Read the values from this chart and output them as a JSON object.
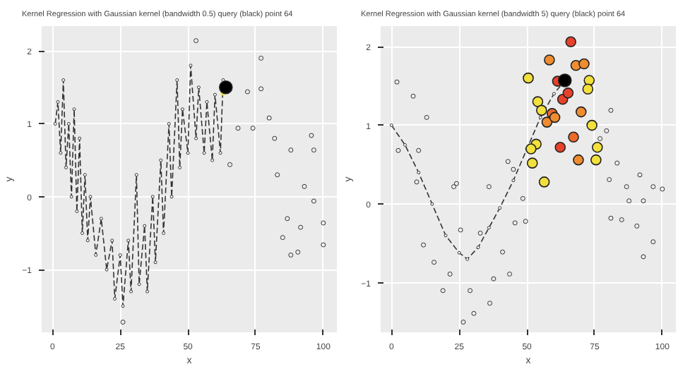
{
  "chart_data": [
    {
      "type": "scatter",
      "title": "Kernel Regression with Gaussian kernel (bandwidth 0.5) query (black) point 64",
      "xlabel": "x",
      "ylabel": "y",
      "xlim": [
        -4,
        105
      ],
      "ylim": [
        -1.86,
        2.34
      ],
      "xticks": [
        0,
        25,
        50,
        75,
        100
      ],
      "yticks": [
        -1,
        0,
        1,
        2
      ],
      "grid": true,
      "marker": "circle",
      "series": [
        {
          "type": "line",
          "line_style": "dashed",
          "color": "#333333",
          "x": [
            1,
            2,
            3,
            4,
            5,
            6,
            7,
            8,
            9,
            10,
            11,
            12,
            13,
            14,
            16,
            18,
            20,
            22,
            23,
            25,
            26,
            28,
            29,
            31,
            32,
            34,
            35,
            37,
            38,
            40,
            41,
            43,
            44,
            46,
            47,
            48,
            50,
            51,
            53,
            54,
            56,
            57,
            59,
            60,
            62,
            63,
            64
          ],
          "values": [
            1.0,
            1.3,
            0.6,
            1.6,
            0.4,
            1.0,
            0.0,
            1.2,
            -0.2,
            0.8,
            -0.5,
            0.3,
            -0.6,
            0.0,
            -0.8,
            -0.3,
            -1.0,
            -0.6,
            -1.4,
            -0.8,
            -1.5,
            -0.6,
            -1.3,
            0.3,
            -1.2,
            -0.4,
            -1.3,
            0.0,
            -0.9,
            0.5,
            -0.5,
            1.0,
            0.0,
            1.6,
            0.4,
            1.2,
            0.6,
            1.8,
            0.8,
            1.5,
            0.6,
            1.3,
            0.5,
            1.4,
            0.6,
            1.6,
            1.5
          ]
        },
        {
          "color": "#333333",
          "x": [
            72,
            77,
            77,
            80,
            68.5,
            74,
            82,
            88,
            95.6,
            96.5,
            65.5,
            83,
            93,
            96.5,
            100,
            86.7,
            85,
            91.6,
            88,
            90.6,
            100,
            53,
            26
          ],
          "values": [
            1.44,
            1.9,
            1.48,
            1.08,
            0.94,
            0.94,
            0.8,
            0.64,
            0.84,
            0.64,
            0.44,
            0.3,
            0.14,
            -0.06,
            -0.36,
            -0.3,
            -0.56,
            -0.42,
            -0.8,
            -0.76,
            -0.66,
            2.14,
            -1.72
          ]
        },
        {
          "color": "#f2e03c",
          "x": [
            63
          ],
          "values": [
            1.42
          ]
        },
        {
          "color": "#000000",
          "x": [
            64
          ],
          "values": [
            1.5
          ]
        }
      ]
    },
    {
      "type": "scatter",
      "title": "Kernel Regression with Gaussian kernel (bandwidth 5) query (black) point 64",
      "xlabel": "x",
      "ylabel": "y",
      "xlim": [
        -4,
        105
      ],
      "ylim": [
        -1.63,
        2.26
      ],
      "xticks": [
        0,
        25,
        50,
        75,
        100
      ],
      "yticks": [
        -1,
        0,
        1,
        2
      ],
      "grid": true,
      "marker": "circle",
      "series": [
        {
          "type": "line",
          "line_style": "dashed",
          "color": "#333333",
          "x": [
            0,
            5,
            10,
            15,
            20,
            25,
            28,
            32,
            36,
            40,
            45,
            50,
            55,
            60,
            64
          ],
          "values": [
            1.0,
            0.75,
            0.4,
            0.0,
            -0.4,
            -0.62,
            -0.7,
            -0.55,
            -0.3,
            -0.05,
            0.3,
            0.7,
            1.1,
            1.4,
            1.57
          ]
        },
        {
          "color": "#333333",
          "x": [
            2,
            8,
            13,
            2.5,
            10,
            24,
            43,
            45,
            81,
            79.4,
            83.3,
            80.4,
            91.7,
            96.6,
            9.3,
            23,
            36,
            48.5,
            45.6,
            49.5,
            11.8,
            15.7,
            21.6,
            19,
            29,
            25.5,
            32.8,
            41,
            37.7,
            43.6,
            30.4,
            26.5,
            36.3,
            81,
            85,
            87.7,
            93,
            90.6,
            96.6,
            93,
            86.8,
            100,
            77
          ],
          "values": [
            1.55,
            1.37,
            1.1,
            0.68,
            0.68,
            0.26,
            0.54,
            0.44,
            1.19,
            0.93,
            0.52,
            0.31,
            0.37,
            0.22,
            0.28,
            0.22,
            0.22,
            0.07,
            -0.24,
            -0.22,
            -0.52,
            -0.74,
            -0.89,
            -1.1,
            -1.1,
            -0.33,
            -0.37,
            -0.61,
            -0.95,
            -0.89,
            -1.39,
            -1.5,
            -1.26,
            -0.18,
            -0.2,
            0.04,
            0.04,
            -0.28,
            -0.48,
            -0.67,
            0.22,
            0.19,
            0.83
          ]
        },
        {
          "x": [
            50.5,
            54,
            55.4,
            57.4,
            59.3,
            60.3,
            58.3,
            61.3,
            63.2,
            65.2,
            66.2,
            68.1,
            71.1,
            73,
            72.5,
            70,
            74,
            67.2,
            62.3,
            69,
            75.5,
            76,
            53.4,
            51.5,
            52,
            56.4
          ],
          "values": [
            1.6,
            1.3,
            1.19,
            1.04,
            1.15,
            1.1,
            1.83,
            1.56,
            1.33,
            1.41,
            2.06,
            1.76,
            1.78,
            1.57,
            1.46,
            1.17,
            1.0,
            0.85,
            0.72,
            0.56,
            0.56,
            0.72,
            0.76,
            0.7,
            0.52,
            0.28
          ],
          "colors": [
            "#f2e03c",
            "#f2e03c",
            "#f2e03c",
            "#f08c30",
            "#ec6a2c",
            "#f08c30",
            "#f08c30",
            "#e8412a",
            "#e8412a",
            "#e8412a",
            "#e8412a",
            "#f08c30",
            "#f08c30",
            "#f2e03c",
            "#f2e03c",
            "#f08c30",
            "#f2e03c",
            "#ec6a2c",
            "#e8412a",
            "#f08c30",
            "#f2e03c",
            "#f2e03c",
            "#f2e03c",
            "#f2e03c",
            "#f2e03c",
            "#f2e03c"
          ]
        },
        {
          "color": "#000000",
          "x": [
            64
          ],
          "values": [
            1.57
          ]
        }
      ]
    }
  ]
}
